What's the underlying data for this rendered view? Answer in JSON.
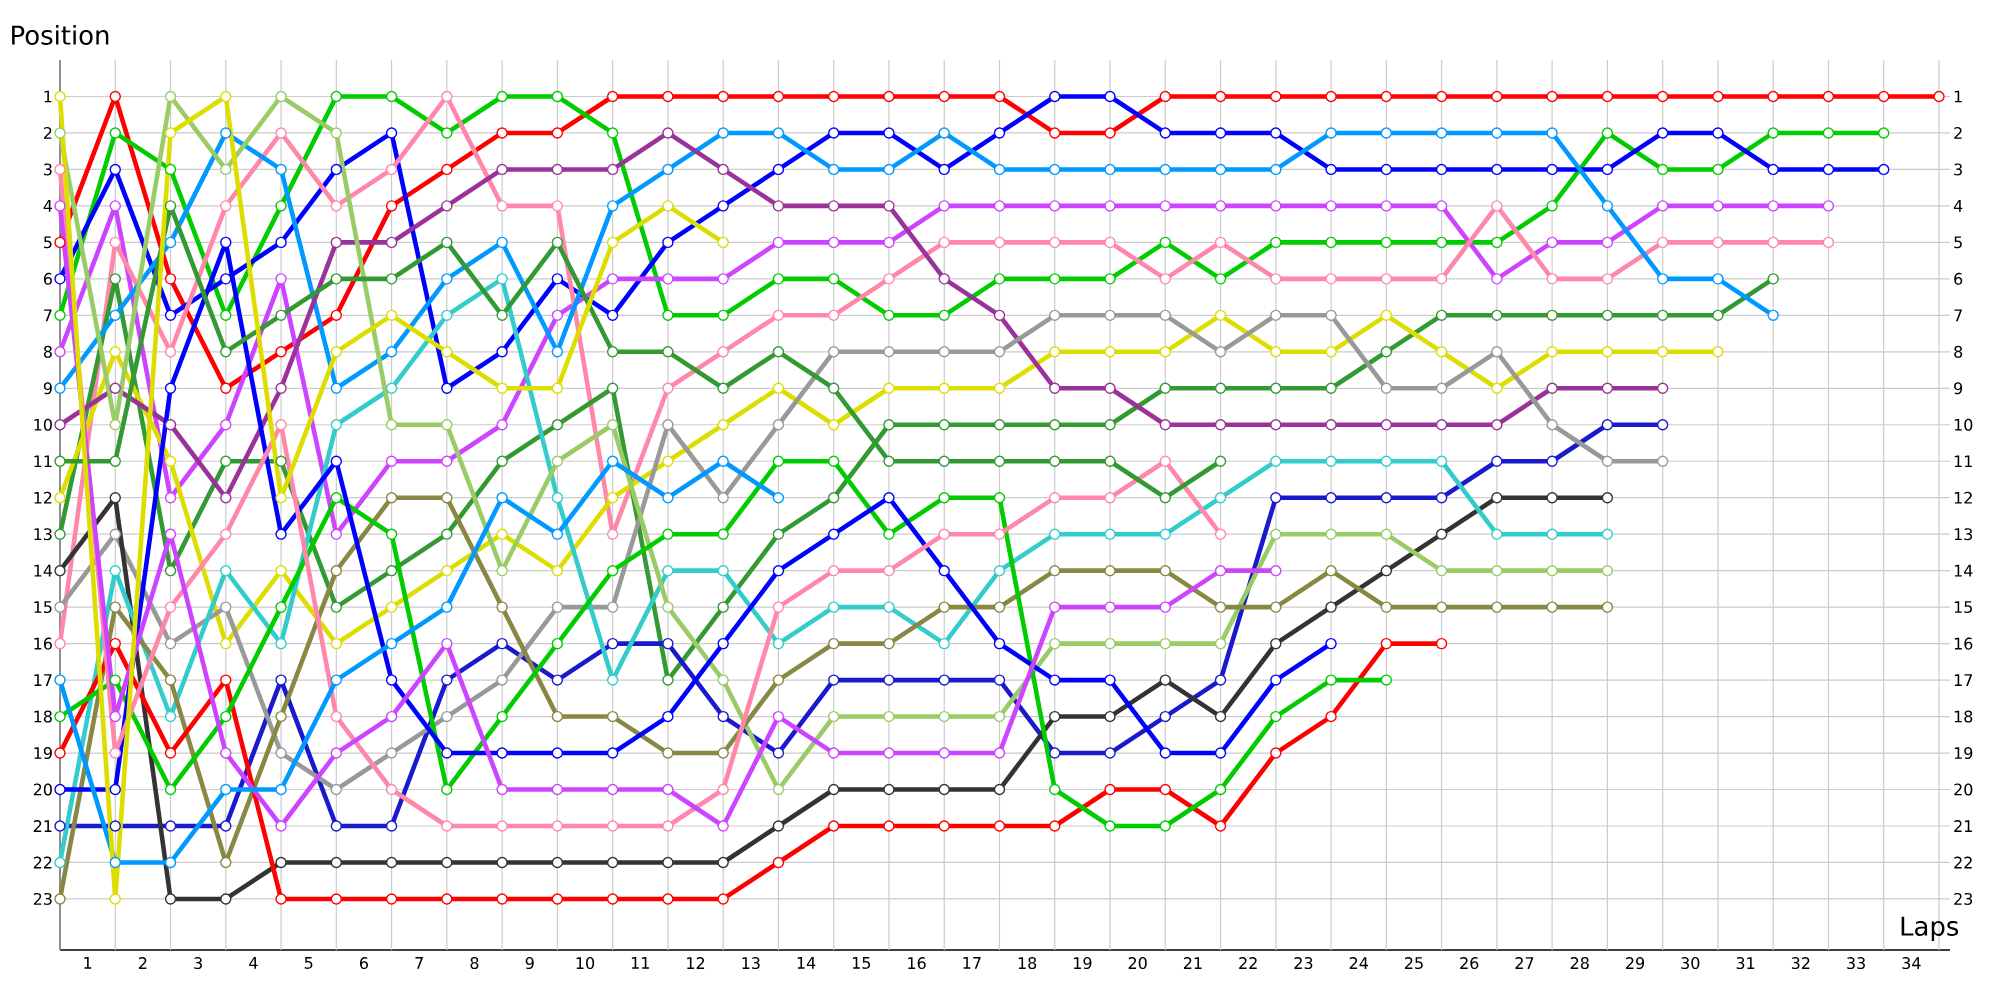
{
  "chart_data": {
    "type": "line",
    "xlabel": "Laps",
    "ylabel": "Position",
    "x": [
      0,
      1,
      2,
      3,
      4,
      5,
      6,
      7,
      8,
      9,
      10,
      11,
      12,
      13,
      14,
      15,
      16,
      17,
      18,
      19,
      20,
      21,
      22,
      23,
      24,
      25,
      26,
      27,
      28,
      29,
      30,
      31,
      32,
      33,
      34
    ],
    "xlim": [
      0,
      34.2
    ],
    "xticks": [
      {
        "value": 0,
        "label": null
      },
      {
        "value": 0.5,
        "label": "1"
      },
      {
        "value": 1,
        "label": null
      },
      {
        "value": 1.5,
        "label": "2"
      },
      {
        "value": 2,
        "label": null
      },
      {
        "value": 2.5,
        "label": "3"
      },
      {
        "value": 3,
        "label": null
      },
      {
        "value": 3.5,
        "label": "4"
      },
      {
        "value": 4,
        "label": null
      },
      {
        "value": 4.5,
        "label": "5"
      },
      {
        "value": 5,
        "label": null
      },
      {
        "value": 5.5,
        "label": "6"
      },
      {
        "value": 6,
        "label": null
      },
      {
        "value": 6.5,
        "label": "7"
      },
      {
        "value": 7,
        "label": null
      },
      {
        "value": 7.5,
        "label": "8"
      },
      {
        "value": 8,
        "label": null
      },
      {
        "value": 8.5,
        "label": "9"
      },
      {
        "value": 9,
        "label": null
      },
      {
        "value": 9.5,
        "label": "10"
      },
      {
        "value": 10,
        "label": null
      },
      {
        "value": 10.5,
        "label": "11"
      },
      {
        "value": 11,
        "label": null
      },
      {
        "value": 11.5,
        "label": "12"
      },
      {
        "value": 12,
        "label": null
      },
      {
        "value": 12.5,
        "label": "13"
      },
      {
        "value": 13,
        "label": null
      },
      {
        "value": 13.5,
        "label": "14"
      },
      {
        "value": 14,
        "label": null
      },
      {
        "value": 14.5,
        "label": "15"
      },
      {
        "value": 15,
        "label": null
      },
      {
        "value": 15.5,
        "label": "16"
      },
      {
        "value": 16,
        "label": null
      },
      {
        "value": 16.5,
        "label": "17"
      },
      {
        "value": 17,
        "label": null
      },
      {
        "value": 17.5,
        "label": "18"
      },
      {
        "value": 18,
        "label": null
      },
      {
        "value": 18.5,
        "label": "19"
      },
      {
        "value": 19,
        "label": null
      },
      {
        "value": 19.5,
        "label": "20"
      },
      {
        "value": 20,
        "label": null
      },
      {
        "value": 20.5,
        "label": "21"
      },
      {
        "value": 21,
        "label": null
      },
      {
        "value": 21.5,
        "label": "22"
      },
      {
        "value": 22,
        "label": null
      },
      {
        "value": 22.5,
        "label": "23"
      },
      {
        "value": 23,
        "label": null
      },
      {
        "value": 23.5,
        "label": "24"
      },
      {
        "value": 24,
        "label": null
      },
      {
        "value": 24.5,
        "label": "25"
      },
      {
        "value": 25,
        "label": null
      },
      {
        "value": 25.5,
        "label": "26"
      },
      {
        "value": 26,
        "label": null
      },
      {
        "value": 26.5,
        "label": "27"
      },
      {
        "value": 27,
        "label": null
      },
      {
        "value": 27.5,
        "label": "28"
      },
      {
        "value": 28,
        "label": null
      },
      {
        "value": 28.5,
        "label": "29"
      },
      {
        "value": 29,
        "label": null
      },
      {
        "value": 29.5,
        "label": "30"
      },
      {
        "value": 30,
        "label": null
      },
      {
        "value": 30.5,
        "label": "31"
      },
      {
        "value": 31,
        "label": null
      },
      {
        "value": 31.5,
        "label": "32"
      },
      {
        "value": 32,
        "label": null
      },
      {
        "value": 32.5,
        "label": "33"
      },
      {
        "value": 33,
        "label": null
      },
      {
        "value": 33.5,
        "label": "34"
      },
      {
        "value": 34,
        "label": null
      }
    ],
    "ylim": [
      24.4,
      0
    ],
    "yticks": [
      1,
      2,
      3,
      4,
      5,
      6,
      7,
      8,
      9,
      10,
      11,
      12,
      13,
      14,
      15,
      16,
      17,
      18,
      19,
      20,
      21,
      22,
      23
    ],
    "y2lim": [
      24.4,
      0
    ],
    "y2ticks": [
      1,
      2,
      3,
      4,
      5,
      6,
      7,
      8,
      9,
      10,
      11,
      12,
      13,
      14,
      15,
      16,
      17,
      18,
      19,
      20,
      21,
      22,
      23
    ],
    "grid": true,
    "marker": "circle",
    "line_style": "solid",
    "series": [
      {
        "color": "#ff0000",
        "values": [
          5,
          1,
          6,
          9,
          8,
          7,
          4,
          3,
          2,
          2,
          1,
          1,
          1,
          1,
          1,
          1,
          1,
          1,
          2,
          2,
          1,
          1,
          1,
          1,
          1,
          1,
          1,
          1,
          1,
          1,
          1,
          1,
          1,
          1,
          1
        ]
      },
      {
        "color": "#00cc00",
        "values": [
          7,
          2,
          3,
          7,
          4,
          1,
          1,
          2,
          1,
          1,
          2,
          7,
          7,
          6,
          6,
          7,
          7,
          6,
          6,
          6,
          5,
          6,
          5,
          5,
          5,
          5,
          5,
          4,
          2,
          3,
          3,
          2,
          2,
          2,
          null
        ]
      },
      {
        "color": "#0000ff",
        "values": [
          6,
          3,
          7,
          6,
          5,
          3,
          2,
          9,
          8,
          6,
          7,
          5,
          4,
          3,
          2,
          2,
          3,
          2,
          1,
          1,
          2,
          2,
          2,
          3,
          3,
          3,
          3,
          3,
          3,
          2,
          2,
          3,
          3,
          3,
          null
        ]
      },
      {
        "color": "#cc44ff",
        "values": [
          8,
          4,
          12,
          10,
          6,
          13,
          11,
          11,
          10,
          7,
          6,
          6,
          6,
          5,
          5,
          5,
          4,
          4,
          4,
          4,
          4,
          4,
          4,
          4,
          4,
          4,
          6,
          5,
          5,
          4,
          4,
          4,
          4,
          null,
          null
        ]
      },
      {
        "color": "#ff88aa",
        "values": [
          16,
          5,
          8,
          4,
          2,
          4,
          3,
          1,
          4,
          4,
          13,
          9,
          8,
          7,
          7,
          6,
          5,
          5,
          5,
          5,
          6,
          5,
          6,
          6,
          6,
          6,
          4,
          6,
          6,
          5,
          5,
          5,
          5,
          null,
          null
        ]
      },
      {
        "color": "#339933",
        "values": [
          13,
          6,
          14,
          11,
          11,
          15,
          14,
          13,
          11,
          10,
          9,
          17,
          15,
          13,
          12,
          10,
          10,
          10,
          10,
          10,
          9,
          9,
          9,
          9,
          8,
          7,
          7,
          7,
          7,
          7,
          7,
          6,
          null,
          null,
          null
        ]
      },
      {
        "color": "#0099ff",
        "values": [
          9,
          7,
          5,
          2,
          3,
          9,
          8,
          6,
          5,
          8,
          4,
          3,
          2,
          2,
          3,
          3,
          2,
          3,
          3,
          3,
          3,
          3,
          3,
          2,
          2,
          2,
          2,
          2,
          4,
          6,
          6,
          7,
          null,
          null,
          null
        ]
      },
      {
        "color": "#dddd00",
        "values": [
          12,
          8,
          11,
          16,
          14,
          16,
          15,
          14,
          13,
          14,
          12,
          11,
          10,
          9,
          10,
          9,
          9,
          9,
          8,
          8,
          8,
          7,
          8,
          8,
          7,
          8,
          9,
          8,
          8,
          8,
          8,
          null,
          null,
          null,
          null
        ]
      },
      {
        "color": "#993399",
        "values": [
          10,
          9,
          10,
          12,
          9,
          5,
          5,
          4,
          3,
          3,
          3,
          2,
          3,
          4,
          4,
          4,
          6,
          7,
          9,
          9,
          10,
          10,
          10,
          10,
          10,
          10,
          10,
          9,
          9,
          9,
          null,
          null,
          null,
          null,
          null
        ]
      },
      {
        "color": "#1a1acc",
        "values": [
          21,
          21,
          21,
          21,
          17,
          21,
          21,
          17,
          16,
          17,
          16,
          16,
          18,
          19,
          17,
          17,
          17,
          17,
          19,
          19,
          18,
          17,
          12,
          12,
          12,
          12,
          11,
          11,
          10,
          10,
          null,
          null,
          null,
          null,
          null
        ]
      },
      {
        "color": "#999999",
        "values": [
          15,
          13,
          16,
          15,
          19,
          20,
          19,
          18,
          17,
          15,
          15,
          10,
          12,
          10,
          8,
          8,
          8,
          8,
          7,
          7,
          7,
          8,
          7,
          7,
          9,
          9,
          8,
          10,
          11,
          11,
          null,
          null,
          null,
          null,
          null
        ]
      },
      {
        "color": "#333333",
        "values": [
          14,
          12,
          23,
          23,
          22,
          22,
          22,
          22,
          22,
          22,
          22,
          22,
          22,
          21,
          20,
          20,
          20,
          20,
          18,
          18,
          17,
          18,
          16,
          15,
          14,
          13,
          12,
          12,
          12,
          null,
          null,
          null,
          null,
          null,
          null
        ]
      },
      {
        "color": "#33cccc",
        "values": [
          22,
          14,
          18,
          14,
          16,
          10,
          9,
          7,
          6,
          12,
          17,
          14,
          14,
          16,
          15,
          15,
          16,
          14,
          13,
          13,
          13,
          12,
          11,
          11,
          11,
          11,
          13,
          13,
          13,
          null,
          null,
          null,
          null,
          null,
          null
        ]
      },
      {
        "color": "#99cc66",
        "values": [
          2,
          10,
          1,
          3,
          1,
          2,
          10,
          10,
          14,
          11,
          10,
          15,
          17,
          20,
          18,
          18,
          18,
          18,
          16,
          16,
          16,
          16,
          13,
          13,
          13,
          14,
          14,
          14,
          14,
          null,
          null,
          null,
          null,
          null,
          null
        ]
      },
      {
        "color": "#888844",
        "values": [
          23,
          15,
          17,
          22,
          18,
          14,
          12,
          12,
          15,
          18,
          18,
          19,
          19,
          17,
          16,
          16,
          15,
          15,
          14,
          14,
          14,
          15,
          15,
          14,
          15,
          15,
          15,
          15,
          15,
          null,
          null,
          null,
          null,
          null,
          null
        ]
      },
      {
        "color": "#ff0000",
        "values": [
          19,
          16,
          19,
          17,
          23,
          23,
          23,
          23,
          23,
          23,
          23,
          23,
          23,
          22,
          21,
          21,
          21,
          21,
          21,
          20,
          20,
          21,
          19,
          18,
          16,
          16,
          null,
          null,
          null,
          null,
          null,
          null,
          null,
          null,
          null
        ]
      },
      {
        "color": "#00cc00",
        "values": [
          18,
          17,
          20,
          18,
          15,
          12,
          13,
          20,
          18,
          16,
          14,
          13,
          13,
          11,
          11,
          13,
          12,
          12,
          20,
          21,
          21,
          20,
          18,
          17,
          17,
          null,
          null,
          null,
          null,
          null,
          null,
          null,
          null,
          null,
          null
        ]
      },
      {
        "color": "#0000ff",
        "values": [
          20,
          20,
          9,
          5,
          13,
          11,
          17,
          19,
          19,
          19,
          19,
          18,
          16,
          14,
          13,
          12,
          14,
          16,
          17,
          17,
          19,
          19,
          17,
          16,
          null,
          null,
          null,
          null,
          null,
          null,
          null,
          null,
          null,
          null,
          null
        ]
      },
      {
        "color": "#ff88aa",
        "values": [
          3,
          19,
          15,
          13,
          10,
          18,
          20,
          21,
          21,
          21,
          21,
          21,
          20,
          15,
          14,
          14,
          13,
          13,
          12,
          12,
          11,
          13,
          null,
          null,
          null,
          null,
          null,
          null,
          null,
          null,
          null,
          null,
          null,
          null,
          null
        ]
      },
      {
        "color": "#cc44ff",
        "values": [
          4,
          18,
          13,
          19,
          21,
          19,
          18,
          16,
          20,
          20,
          20,
          20,
          21,
          18,
          19,
          19,
          19,
          19,
          15,
          15,
          15,
          14,
          14,
          null,
          null,
          null,
          null,
          null,
          null,
          null,
          null,
          null,
          null,
          null,
          null
        ]
      },
      {
        "color": "#339933",
        "values": [
          11,
          11,
          4,
          8,
          7,
          6,
          6,
          5,
          7,
          5,
          8,
          8,
          9,
          8,
          9,
          11,
          11,
          11,
          11,
          11,
          12,
          11,
          null,
          null,
          null,
          null,
          null,
          null,
          null,
          null,
          null,
          null,
          null,
          null,
          null
        ]
      },
      {
        "color": "#0099ff",
        "values": [
          17,
          22,
          22,
          20,
          20,
          17,
          16,
          15,
          12,
          13,
          11,
          12,
          11,
          12,
          null,
          null,
          null,
          null,
          null,
          null,
          null,
          null,
          null,
          null,
          null,
          null,
          null,
          null,
          null,
          null,
          null,
          null,
          null,
          null,
          null
        ]
      },
      {
        "color": "#dddd00",
        "values": [
          1,
          23,
          2,
          1,
          12,
          8,
          7,
          8,
          9,
          9,
          5,
          4,
          5,
          null,
          null,
          null,
          null,
          null,
          null,
          null,
          null,
          null,
          null,
          null,
          null,
          null,
          null,
          null,
          null,
          null,
          null,
          null,
          null,
          null,
          null
        ]
      }
    ]
  }
}
